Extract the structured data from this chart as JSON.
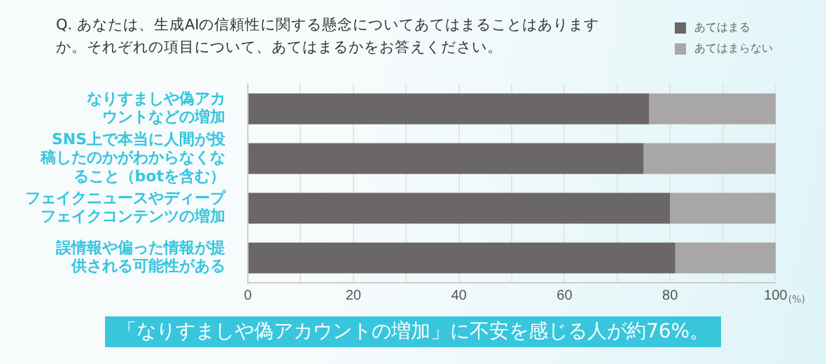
{
  "chart_data": {
    "type": "bar",
    "orientation": "horizontal",
    "stacked": true,
    "title": "Q. あなたは、生成AIの信頼性に関する懸念についてあてはまることはありますか。それぞれの項目について、あてはまるかをお答えください。",
    "categories": [
      "なりすましや偽アカウントなどの増加",
      "SNS上で本当に人間が投稿したのかがわからなくなること（botを含む）",
      "フェイクニュースやディープフェイクコンテンツの増加",
      "誤情報や偏った情報が提供される可能性がある"
    ],
    "series": [
      {
        "name": "あてはまる",
        "color": "#6b6767",
        "values": [
          76,
          75,
          80,
          81
        ]
      },
      {
        "name": "あてはまらない",
        "color": "#a8a6a6",
        "values": [
          24,
          25,
          20,
          19
        ]
      }
    ],
    "xlabel": "(%)",
    "xlim": [
      0,
      100
    ],
    "xticks": [
      0,
      {
        "value": 10,
        "label": null
      },
      20,
      {
        "value": 30,
        "label": null
      },
      40,
      {
        "value": 50,
        "label": null
      },
      60,
      {
        "value": 70,
        "label": null
      },
      80,
      {
        "value": 90,
        "label": null
      },
      100
    ],
    "grid": "x",
    "legend": "top right",
    "annotations": [
      "「なりすましや偽アカウントの増加」に不安を感じる人が約76%。"
    ]
  }
}
